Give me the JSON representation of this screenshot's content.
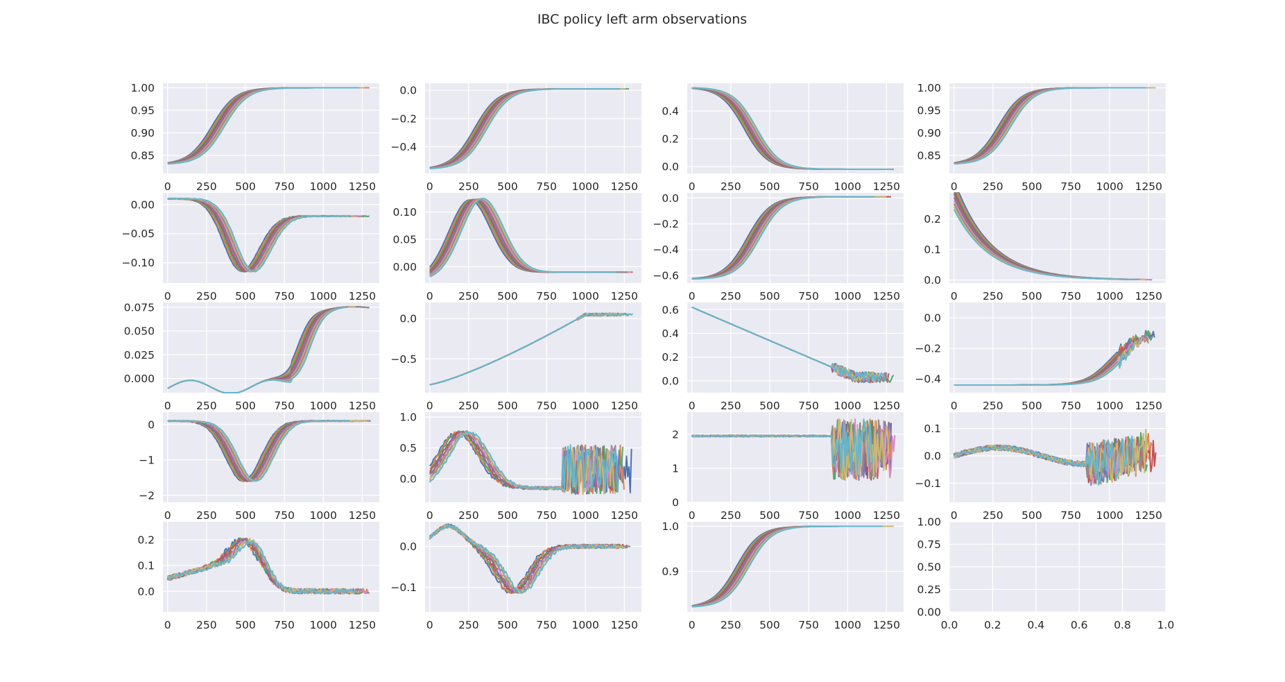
{
  "figure": {
    "title": "IBC policy left arm observations"
  },
  "style": {
    "axes_bg": "#eaeaf2",
    "grid": "#ffffff",
    "palette": [
      "#4c72b0",
      "#dd8452",
      "#55a868",
      "#c44e52",
      "#8172b3",
      "#937860",
      "#da8bc3",
      "#8c8c8c",
      "#ccb974",
      "#64b5cd"
    ]
  },
  "chart_data": [
    {
      "type": "line",
      "xlim": [
        -30,
        1360
      ],
      "ylim": [
        0.81,
        1.01
      ],
      "xticks": [
        0,
        250,
        500,
        750,
        1000,
        1250
      ],
      "yticks": [
        0.85,
        0.9,
        0.95,
        1.0
      ],
      "ytick_labels": [
        "0.85",
        "0.90",
        "0.95",
        "1.00"
      ],
      "shape": "sig_up",
      "start": 0.83,
      "end": 1.0,
      "mid": 330
    },
    {
      "type": "line",
      "xlim": [
        -30,
        1360
      ],
      "ylim": [
        -0.59,
        0.05
      ],
      "xticks": [
        0,
        250,
        500,
        750,
        1000,
        1250
      ],
      "yticks": [
        -0.4,
        -0.2,
        0.0
      ],
      "ytick_labels": [
        "−0.4",
        "−0.2",
        "0.0"
      ],
      "shape": "sig_up",
      "start": -0.56,
      "end": 0.01,
      "mid": 330
    },
    {
      "type": "line",
      "xlim": [
        -30,
        1360
      ],
      "ylim": [
        -0.05,
        0.6
      ],
      "xticks": [
        0,
        250,
        500,
        750,
        1000,
        1250
      ],
      "yticks": [
        0.0,
        0.2,
        0.4
      ],
      "ytick_labels": [
        "0.0",
        "0.2",
        "0.4"
      ],
      "shape": "sig_down",
      "start": 0.57,
      "end": -0.02,
      "mid": 380
    },
    {
      "type": "line",
      "xlim": [
        -30,
        1360
      ],
      "ylim": [
        0.81,
        1.01
      ],
      "xticks": [
        0,
        250,
        500,
        750,
        1000,
        1250
      ],
      "yticks": [
        0.85,
        0.9,
        0.95,
        1.0
      ],
      "ytick_labels": [
        "0.85",
        "0.90",
        "0.95",
        "1.00"
      ],
      "shape": "sig_up",
      "start": 0.83,
      "end": 1.0,
      "mid": 330
    },
    {
      "type": "line",
      "xlim": [
        -30,
        1360
      ],
      "ylim": [
        -0.135,
        0.02
      ],
      "xticks": [
        0,
        250,
        500,
        750,
        1000,
        1250
      ],
      "yticks": [
        -0.1,
        -0.05,
        0.0
      ],
      "ytick_labels": [
        "−0.10",
        "−0.05",
        "0.00"
      ],
      "shape": "dip",
      "start": 0.01,
      "low": -0.115,
      "tmin": 520,
      "end": -0.02
    },
    {
      "type": "line",
      "xlim": [
        -30,
        1360
      ],
      "ylim": [
        -0.03,
        0.135
      ],
      "xticks": [
        0,
        250,
        500,
        750,
        1000,
        1250
      ],
      "yticks": [
        0.0,
        0.05,
        0.1
      ],
      "ytick_labels": [
        "0.00",
        "0.05",
        "0.10"
      ],
      "shape": "hump",
      "start": -0.025,
      "peak": 0.12,
      "tpeak": 300,
      "end": -0.01
    },
    {
      "type": "line",
      "xlim": [
        -30,
        1360
      ],
      "ylim": [
        -0.66,
        0.04
      ],
      "xticks": [
        0,
        250,
        500,
        750,
        1000,
        1250
      ],
      "yticks": [
        -0.6,
        -0.4,
        -0.2,
        0.0
      ],
      "ytick_labels": [
        "−0.6",
        "−0.4",
        "−0.2",
        "0.0"
      ],
      "shape": "sig_up",
      "start": -0.63,
      "end": 0.01,
      "mid": 400
    },
    {
      "type": "line",
      "xlim": [
        -30,
        1360
      ],
      "ylim": [
        -0.01,
        0.285
      ],
      "xticks": [
        0,
        250,
        500,
        750,
        1000,
        1250
      ],
      "yticks": [
        0.0,
        0.1,
        0.2
      ],
      "ytick_labels": [
        "0.0",
        "0.1",
        "0.2"
      ],
      "shape": "decay",
      "start": 0.27,
      "end": 0.0
    },
    {
      "type": "line",
      "xlim": [
        -30,
        1360
      ],
      "ylim": [
        -0.015,
        0.08
      ],
      "xticks": [
        0,
        250,
        500,
        750,
        1000,
        1250
      ],
      "yticks": [
        0.0,
        0.025,
        0.05,
        0.075
      ],
      "ytick_labels": [
        "0.000",
        "0.025",
        "0.050",
        "0.075"
      ],
      "shape": "wave_rise",
      "start": -0.01,
      "end": 0.07
    },
    {
      "type": "line",
      "xlim": [
        -30,
        1360
      ],
      "ylim": [
        -0.92,
        0.2
      ],
      "xticks": [
        0,
        250,
        500,
        750,
        1000,
        1250
      ],
      "yticks": [
        -0.5,
        0.0
      ],
      "ytick_labels": [
        "−0.5",
        "0.0"
      ],
      "shape": "ramp",
      "start": -0.82,
      "end": 0.05
    },
    {
      "type": "line",
      "xlim": [
        -30,
        1360
      ],
      "ylim": [
        -0.1,
        0.66
      ],
      "xticks": [
        0,
        250,
        500,
        750,
        1000,
        1250
      ],
      "yticks": [
        0.0,
        0.2,
        0.4,
        0.6
      ],
      "ytick_labels": [
        "0.0",
        "0.2",
        "0.4",
        "0.6"
      ],
      "shape": "ramp_down",
      "start": 0.62,
      "end": 0.03
    },
    {
      "type": "line",
      "xlim": [
        -30,
        1360
      ],
      "ylim": [
        -0.49,
        0.1
      ],
      "xticks": [
        0,
        250,
        500,
        750,
        1000,
        1250
      ],
      "yticks": [
        -0.4,
        -0.2,
        0.0
      ],
      "ytick_labels": [
        "−0.4",
        "−0.2",
        "0.0"
      ],
      "shape": "late_rise",
      "start": -0.44,
      "end": -0.1
    },
    {
      "type": "line",
      "xlim": [
        -30,
        1360
      ],
      "ylim": [
        -2.2,
        0.35
      ],
      "xticks": [
        0,
        250,
        500,
        750,
        1000,
        1250
      ],
      "yticks": [
        -2,
        -1,
        0
      ],
      "ytick_labels": [
        "−2",
        "−1",
        "0"
      ],
      "shape": "dip",
      "start": 0.1,
      "low": -1.6,
      "tmin": 530,
      "end": 0.1
    },
    {
      "type": "line",
      "xlim": [
        -30,
        1360
      ],
      "ylim": [
        -0.38,
        1.08
      ],
      "xticks": [
        0,
        250,
        500,
        750,
        1000,
        1250
      ],
      "yticks": [
        0.0,
        0.5,
        1.0
      ],
      "ytick_labels": [
        "0.0",
        "0.5",
        "1.0"
      ],
      "shape": "hump_noise",
      "start": 0.2,
      "peak": 0.75,
      "tpeak": 220,
      "end": 0.3
    },
    {
      "type": "line",
      "xlim": [
        -30,
        1360
      ],
      "ylim": [
        0,
        2.65
      ],
      "xticks": [
        0,
        250,
        500,
        750,
        1000,
        1250
      ],
      "yticks": [
        0,
        1,
        2
      ],
      "ytick_labels": [
        "0",
        "1",
        "2"
      ],
      "shape": "flat_drop",
      "start": 1.95,
      "end": 1.9
    },
    {
      "type": "line",
      "xlim": [
        -30,
        1360
      ],
      "ylim": [
        -0.17,
        0.16
      ],
      "xticks": [
        0,
        250,
        500,
        750,
        1000,
        1250
      ],
      "yticks": [
        -0.1,
        0.0,
        0.1
      ],
      "ytick_labels": [
        "−0.1",
        "0.0",
        "0.1"
      ],
      "shape": "noise_flat",
      "start": 0.02,
      "end": 0.0
    },
    {
      "type": "line",
      "xlim": [
        -30,
        1360
      ],
      "ylim": [
        -0.08,
        0.27
      ],
      "xticks": [
        0,
        250,
        500,
        750,
        1000,
        1250
      ],
      "yticks": [
        0.0,
        0.1,
        0.2
      ],
      "ytick_labels": [
        "0.0",
        "0.1",
        "0.2"
      ],
      "shape": "mid_peak",
      "start": 0.0,
      "peak": 0.2,
      "tpeak": 510,
      "end": -0.03
    },
    {
      "type": "line",
      "xlim": [
        -30,
        1360
      ],
      "ylim": [
        -0.16,
        0.06
      ],
      "xticks": [
        0,
        250,
        500,
        750,
        1000,
        1250
      ],
      "yticks": [
        -0.1,
        0.0
      ],
      "ytick_labels": [
        "−0.1",
        "0.0"
      ],
      "shape": "hump_dip",
      "start": 0.0,
      "end": -0.01
    },
    {
      "type": "line",
      "xlim": [
        -30,
        1360
      ],
      "ylim": [
        0.81,
        1.01
      ],
      "xticks": [
        0,
        250,
        500,
        750,
        1000,
        1250
      ],
      "yticks": [
        0.9,
        1.0
      ],
      "ytick_labels": [
        "0.9",
        "1.0"
      ],
      "shape": "sig_up",
      "start": 0.82,
      "end": 1.0,
      "mid": 330
    },
    {
      "type": "empty",
      "xlim": [
        0,
        1
      ],
      "ylim": [
        0,
        1
      ],
      "xticks": [
        0,
        0.2,
        0.4,
        0.6,
        0.8,
        1.0
      ],
      "xtick_labels": [
        "0.0",
        "0.2",
        "0.4",
        "0.6",
        "0.8",
        "1.0"
      ],
      "yticks": [
        0,
        0.25,
        0.5,
        0.75,
        1.0
      ],
      "ytick_labels": [
        "0.00",
        "0.25",
        "0.50",
        "0.75",
        "1.00"
      ]
    }
  ]
}
